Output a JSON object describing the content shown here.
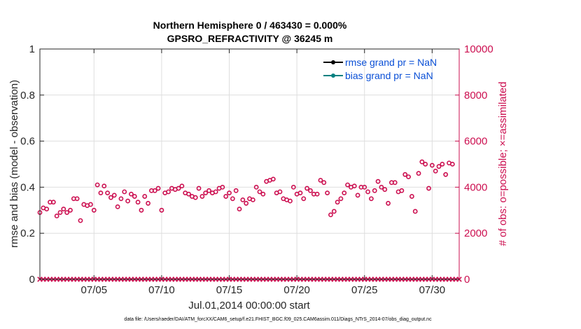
{
  "chart_data": {
    "type": "scatter",
    "title_line1": "Northern Hemisphere 0 / 463430 = 0.000%",
    "title_line2": "GPSRO_REFRACTIVITY @ 36245 m",
    "xlabel": "Jul.01,2014 00:00:00 start",
    "ylabel_left": "rmse and bias (model - observation)",
    "ylabel_right": "# of obs: o=possible; ×=assimilated",
    "footnote": "data file: /Users/raeder/DAI/ATM_forcXX/CAM6_setup/f.e21.FHIST_BGC.f09_025.CAM6assim.011/Diags_NTrS_2014-07/obs_diag_output.nc",
    "xlim": [
      1,
      32
    ],
    "ylim_left": [
      0,
      1
    ],
    "ylim_right": [
      0,
      10000
    ],
    "x_ticks": [
      5,
      10,
      15,
      20,
      25,
      30
    ],
    "x_tick_labels": [
      "07/05",
      "07/10",
      "07/15",
      "07/20",
      "07/25",
      "07/30"
    ],
    "y_left_ticks": [
      0,
      0.2,
      0.4,
      0.6,
      0.8,
      1
    ],
    "y_left_tick_labels": [
      "0",
      "0.2",
      "0.4",
      "0.6",
      "0.8",
      "1"
    ],
    "y_right_ticks": [
      0,
      2000,
      4000,
      6000,
      8000,
      10000
    ],
    "y_right_tick_labels": [
      "0",
      "2000",
      "4000",
      "6000",
      "8000",
      "10000"
    ],
    "legend": [
      {
        "label": "rmse grand pr = NaN",
        "color": "#000000"
      },
      {
        "label": "bias grand pr = NaN",
        "color": "#008080"
      }
    ],
    "colors": {
      "obs": "#cc0f50",
      "axis": "#262626",
      "grid": "#dedede",
      "legend_text": "#0a4fd6"
    },
    "series": [
      {
        "name": "possible",
        "marker": "o",
        "x_start": 1.0,
        "x_step": 0.25,
        "values": [
          2900,
          3100,
          3050,
          3350,
          3350,
          2750,
          2900,
          3050,
          2900,
          3000,
          3500,
          3500,
          2550,
          3250,
          3200,
          3250,
          3000,
          4100,
          3750,
          4050,
          3750,
          3550,
          3650,
          3150,
          3500,
          3800,
          3400,
          3700,
          3600,
          3350,
          3000,
          3600,
          3300,
          3850,
          3850,
          3950,
          3000,
          3750,
          3800,
          3950,
          3900,
          3950,
          4050,
          3750,
          3700,
          3600,
          3550,
          3950,
          3600,
          3750,
          3850,
          3750,
          3800,
          3950,
          4000,
          3600,
          3750,
          3500,
          3850,
          3050,
          3450,
          3300,
          3500,
          3450,
          4000,
          3800,
          3700,
          4250,
          4300,
          4350,
          3750,
          3800,
          3500,
          3450,
          3400,
          4000,
          3700,
          3750,
          3500,
          3950,
          3850,
          3700,
          3700,
          4300,
          4200,
          3750,
          2800,
          2950,
          3350,
          3500,
          3750,
          4100,
          4000,
          4050,
          3650,
          4000,
          4000,
          3800,
          3500,
          3850,
          4250,
          4000,
          3900,
          3300,
          4200,
          4200,
          3800,
          3850,
          4550,
          4450,
          3600,
          2950,
          4600,
          5100,
          5000,
          3950,
          4950,
          4700,
          4900,
          5000,
          4550,
          5050,
          5000
        ]
      },
      {
        "name": "assimilated",
        "marker": "x",
        "x_start": 1.0,
        "x_step": 0.25,
        "values": [
          0,
          0,
          0,
          0,
          0,
          0,
          0,
          0,
          0,
          0,
          0,
          0,
          0,
          0,
          0,
          0,
          0,
          0,
          0,
          0,
          0,
          0,
          0,
          0,
          0,
          0,
          0,
          0,
          0,
          0,
          0,
          0,
          0,
          0,
          0,
          0,
          0,
          0,
          0,
          0,
          0,
          0,
          0,
          0,
          0,
          0,
          0,
          0,
          0,
          0,
          0,
          0,
          0,
          0,
          0,
          0,
          0,
          0,
          0,
          0,
          0,
          0,
          0,
          0,
          0,
          0,
          0,
          0,
          0,
          0,
          0,
          0,
          0,
          0,
          0,
          0,
          0,
          0,
          0,
          0,
          0,
          0,
          0,
          0,
          0,
          0,
          0,
          0,
          0,
          0,
          0,
          0,
          0,
          0,
          0,
          0,
          0,
          0,
          0,
          0,
          0,
          0,
          0,
          0,
          0,
          0,
          0,
          0,
          0,
          0,
          0,
          0,
          0,
          0,
          0,
          0,
          0,
          0,
          0,
          0,
          0,
          0,
          0,
          0,
          0
        ]
      }
    ]
  }
}
